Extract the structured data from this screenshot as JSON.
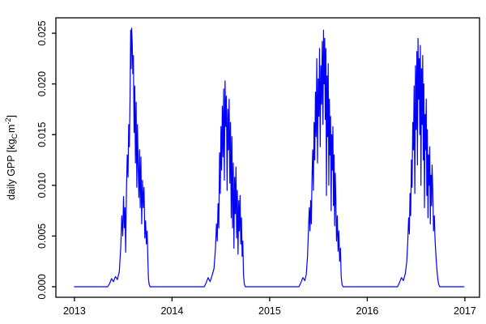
{
  "figure": {
    "background": "#ffffff",
    "border_color": "#000000",
    "tick_label_color": "#000000"
  },
  "chart_data": {
    "type": "line",
    "title": "",
    "xlabel": "",
    "ylabel": "daily GPP [kgC m-2]",
    "ylabel_parts": {
      "prefix": "daily GPP [kg",
      "sub": "C",
      "mid": "m",
      "sup": "-2",
      "suffix": "]"
    },
    "legend": null,
    "grid": false,
    "line_color": "#0000ff",
    "axis_color": "#000000",
    "xlim": [
      2012.81,
      2017.15
    ],
    "ylim": [
      -0.00104,
      0.02652
    ],
    "x_ticks": [
      {
        "value": 2013,
        "label": "2013"
      },
      {
        "value": 2014,
        "label": "2014"
      },
      {
        "value": 2015,
        "label": "2015"
      },
      {
        "value": 2016,
        "label": "2016"
      },
      {
        "value": 2017,
        "label": "2017"
      }
    ],
    "y_ticks": [
      {
        "value": 0.0,
        "label": "0.000"
      },
      {
        "value": 0.005,
        "label": "0.005"
      },
      {
        "value": 0.01,
        "label": "0.010"
      },
      {
        "value": 0.015,
        "label": "0.015"
      },
      {
        "value": 0.02,
        "label": "0.020"
      },
      {
        "value": 0.025,
        "label": "0.025"
      }
    ],
    "series": [
      {
        "name": "daily GPP",
        "color": "#0000ff",
        "points": [
          [
            2013.0,
            0
          ],
          [
            2013.06,
            0
          ],
          [
            2013.12,
            0
          ],
          [
            2013.18,
            0
          ],
          [
            2013.25,
            0
          ],
          [
            2013.34,
            0
          ],
          [
            2013.36,
            0.0003
          ],
          [
            2013.38,
            0.0008
          ],
          [
            2013.4,
            0.0005
          ],
          [
            2013.42,
            0.001
          ],
          [
            2013.44,
            0.0007
          ],
          [
            2013.46,
            0.0015
          ],
          [
            2013.475,
            0.004
          ],
          [
            2013.485,
            0.007
          ],
          [
            2013.495,
            0.005
          ],
          [
            2013.503,
            0.0089
          ],
          [
            2013.511,
            0.0058
          ],
          [
            2013.518,
            0.0078
          ],
          [
            2013.525,
            0.0034
          ],
          [
            2013.533,
            0.0095
          ],
          [
            2013.541,
            0.013
          ],
          [
            2013.549,
            0.0108
          ],
          [
            2013.556,
            0.016
          ],
          [
            2013.563,
            0.0138
          ],
          [
            2013.57,
            0.019
          ],
          [
            2013.576,
            0.0253
          ],
          [
            2013.581,
            0.0215
          ],
          [
            2013.586,
            0.0255
          ],
          [
            2013.592,
            0.024
          ],
          [
            2013.598,
            0.021
          ],
          [
            2013.604,
            0.0228
          ],
          [
            2013.611,
            0.0152
          ],
          [
            2013.618,
            0.0198
          ],
          [
            2013.625,
            0.0122
          ],
          [
            2013.632,
            0.0182
          ],
          [
            2013.639,
            0.0098
          ],
          [
            2013.646,
            0.016
          ],
          [
            2013.653,
            0.0118
          ],
          [
            2013.66,
            0.0088
          ],
          [
            2013.667,
            0.0135
          ],
          [
            2013.674,
            0.0078
          ],
          [
            2013.681,
            0.0128
          ],
          [
            2013.689,
            0.0062
          ],
          [
            2013.697,
            0.0105
          ],
          [
            2013.705,
            0.0078
          ],
          [
            2013.713,
            0.0098
          ],
          [
            2013.721,
            0.0048
          ],
          [
            2013.729,
            0.0065
          ],
          [
            2013.737,
            0.0042
          ],
          [
            2013.745,
            0.0055
          ],
          [
            2013.752,
            0.0028
          ],
          [
            2013.758,
            0.0008
          ],
          [
            2013.766,
            0.0002
          ],
          [
            2013.775,
            0
          ],
          [
            2013.85,
            0
          ],
          [
            2013.95,
            0
          ],
          [
            2014.05,
            0
          ],
          [
            2014.15,
            0
          ],
          [
            2014.25,
            0
          ],
          [
            2014.33,
            0
          ],
          [
            2014.35,
            0.0004
          ],
          [
            2014.37,
            0.0009
          ],
          [
            2014.39,
            0.0005
          ],
          [
            2014.41,
            0.0011
          ],
          [
            2014.43,
            0.0018
          ],
          [
            2014.445,
            0.0038
          ],
          [
            2014.455,
            0.0062
          ],
          [
            2014.463,
            0.0045
          ],
          [
            2014.471,
            0.0082
          ],
          [
            2014.479,
            0.0058
          ],
          [
            2014.487,
            0.0132
          ],
          [
            2014.494,
            0.0092
          ],
          [
            2014.501,
            0.0158
          ],
          [
            2014.508,
            0.0115
          ],
          [
            2014.515,
            0.0178
          ],
          [
            2014.522,
            0.0128
          ],
          [
            2014.529,
            0.0195
          ],
          [
            2014.536,
            0.0105
          ],
          [
            2014.543,
            0.0203
          ],
          [
            2014.55,
            0.0158
          ],
          [
            2014.557,
            0.0188
          ],
          [
            2014.564,
            0.0095
          ],
          [
            2014.571,
            0.0175
          ],
          [
            2014.578,
            0.0135
          ],
          [
            2014.585,
            0.0185
          ],
          [
            2014.592,
            0.0102
          ],
          [
            2014.599,
            0.0162
          ],
          [
            2014.606,
            0.0068
          ],
          [
            2014.613,
            0.0148
          ],
          [
            2014.62,
            0.0058
          ],
          [
            2014.627,
            0.0122
          ],
          [
            2014.634,
            0.0038
          ],
          [
            2014.641,
            0.0108
          ],
          [
            2014.648,
            0.0072
          ],
          [
            2014.655,
            0.0118
          ],
          [
            2014.662,
            0.0048
          ],
          [
            2014.669,
            0.0095
          ],
          [
            2014.676,
            0.0032
          ],
          [
            2014.683,
            0.0085
          ],
          [
            2014.69,
            0.0055
          ],
          [
            2014.697,
            0.009
          ],
          [
            2014.704,
            0.0042
          ],
          [
            2014.711,
            0.0068
          ],
          [
            2014.718,
            0.003
          ],
          [
            2014.725,
            0.0045
          ],
          [
            2014.732,
            0.0012
          ],
          [
            2014.74,
            0.0003
          ],
          [
            2014.75,
            0
          ],
          [
            2014.85,
            0
          ],
          [
            2014.95,
            0
          ],
          [
            2015.05,
            0
          ],
          [
            2015.15,
            0
          ],
          [
            2015.25,
            0
          ],
          [
            2015.3,
            0
          ],
          [
            2015.32,
            0.0004
          ],
          [
            2015.34,
            0.0009
          ],
          [
            2015.36,
            0.0006
          ],
          [
            2015.375,
            0.0012
          ],
          [
            2015.388,
            0.003
          ],
          [
            2015.398,
            0.0058
          ],
          [
            2015.406,
            0.0078
          ],
          [
            2015.413,
            0.0055
          ],
          [
            2015.42,
            0.0085
          ],
          [
            2015.427,
            0.0062
          ],
          [
            2015.434,
            0.0108
          ],
          [
            2015.441,
            0.0135
          ],
          [
            2015.448,
            0.0095
          ],
          [
            2015.455,
            0.0162
          ],
          [
            2015.462,
            0.0125
          ],
          [
            2015.469,
            0.0192
          ],
          [
            2015.476,
            0.0148
          ],
          [
            2015.483,
            0.0225
          ],
          [
            2015.49,
            0.0122
          ],
          [
            2015.497,
            0.0205
          ],
          [
            2015.504,
            0.0168
          ],
          [
            2015.511,
            0.0235
          ],
          [
            2015.518,
            0.0138
          ],
          [
            2015.525,
            0.0218
          ],
          [
            2015.532,
            0.018
          ],
          [
            2015.539,
            0.0242
          ],
          [
            2015.546,
            0.016
          ],
          [
            2015.552,
            0.0253
          ],
          [
            2015.558,
            0.02
          ],
          [
            2015.564,
            0.0245
          ],
          [
            2015.57,
            0.0165
          ],
          [
            2015.576,
            0.0235
          ],
          [
            2015.582,
            0.009
          ],
          [
            2015.588,
            0.0208
          ],
          [
            2015.594,
            0.0148
          ],
          [
            2015.6,
            0.022
          ],
          [
            2015.606,
            0.01
          ],
          [
            2015.612,
            0.0185
          ],
          [
            2015.618,
            0.013
          ],
          [
            2015.624,
            0.0168
          ],
          [
            2015.63,
            0.0075
          ],
          [
            2015.636,
            0.015
          ],
          [
            2015.642,
            0.0115
          ],
          [
            2015.648,
            0.0158
          ],
          [
            2015.654,
            0.008
          ],
          [
            2015.66,
            0.013
          ],
          [
            2015.666,
            0.006
          ],
          [
            2015.672,
            0.0112
          ],
          [
            2015.678,
            0.0088
          ],
          [
            2015.685,
            0.0045
          ],
          [
            2015.693,
            0.007
          ],
          [
            2015.701,
            0.0035
          ],
          [
            2015.709,
            0.0055
          ],
          [
            2015.717,
            0.0025
          ],
          [
            2015.725,
            0.0038
          ],
          [
            2015.733,
            0.001
          ],
          [
            2015.742,
            0.0002
          ],
          [
            2015.752,
            0
          ],
          [
            2015.85,
            0
          ],
          [
            2015.95,
            0
          ],
          [
            2016.05,
            0
          ],
          [
            2016.15,
            0
          ],
          [
            2016.25,
            0
          ],
          [
            2016.31,
            0
          ],
          [
            2016.33,
            0.0004
          ],
          [
            2016.35,
            0.0009
          ],
          [
            2016.37,
            0.0006
          ],
          [
            2016.39,
            0.0013
          ],
          [
            2016.405,
            0.0025
          ],
          [
            2016.415,
            0.0045
          ],
          [
            2016.424,
            0.0068
          ],
          [
            2016.431,
            0.0052
          ],
          [
            2016.438,
            0.0092
          ],
          [
            2016.445,
            0.007
          ],
          [
            2016.452,
            0.0125
          ],
          [
            2016.459,
            0.0098
          ],
          [
            2016.466,
            0.0162
          ],
          [
            2016.473,
            0.0135
          ],
          [
            2016.48,
            0.0198
          ],
          [
            2016.487,
            0.0092
          ],
          [
            2016.494,
            0.0218
          ],
          [
            2016.501,
            0.0155
          ],
          [
            2016.508,
            0.0232
          ],
          [
            2016.514,
            0.012
          ],
          [
            2016.52,
            0.0245
          ],
          [
            2016.526,
            0.0185
          ],
          [
            2016.532,
            0.0225
          ],
          [
            2016.538,
            0.015
          ],
          [
            2016.544,
            0.0238
          ],
          [
            2016.55,
            0.01
          ],
          [
            2016.556,
            0.0215
          ],
          [
            2016.562,
            0.016
          ],
          [
            2016.568,
            0.0228
          ],
          [
            2016.574,
            0.0125
          ],
          [
            2016.58,
            0.02
          ],
          [
            2016.586,
            0.0078
          ],
          [
            2016.592,
            0.017
          ],
          [
            2016.598,
            0.0135
          ],
          [
            2016.604,
            0.0185
          ],
          [
            2016.61,
            0.009
          ],
          [
            2016.616,
            0.0155
          ],
          [
            2016.622,
            0.0068
          ],
          [
            2016.628,
            0.013
          ],
          [
            2016.634,
            0.01
          ],
          [
            2016.64,
            0.0138
          ],
          [
            2016.646,
            0.0062
          ],
          [
            2016.652,
            0.011
          ],
          [
            2016.658,
            0.008
          ],
          [
            2016.664,
            0.012
          ],
          [
            2016.671,
            0.0095
          ],
          [
            2016.679,
            0.0055
          ],
          [
            2016.687,
            0.007
          ],
          [
            2016.695,
            0.0045
          ],
          [
            2016.703,
            0.0032
          ],
          [
            2016.711,
            0.002
          ],
          [
            2016.72,
            0.001
          ],
          [
            2016.73,
            0.0003
          ],
          [
            2016.742,
            0
          ],
          [
            2016.85,
            0
          ],
          [
            2016.92,
            0
          ],
          [
            2016.99,
            0
          ]
        ]
      }
    ]
  }
}
